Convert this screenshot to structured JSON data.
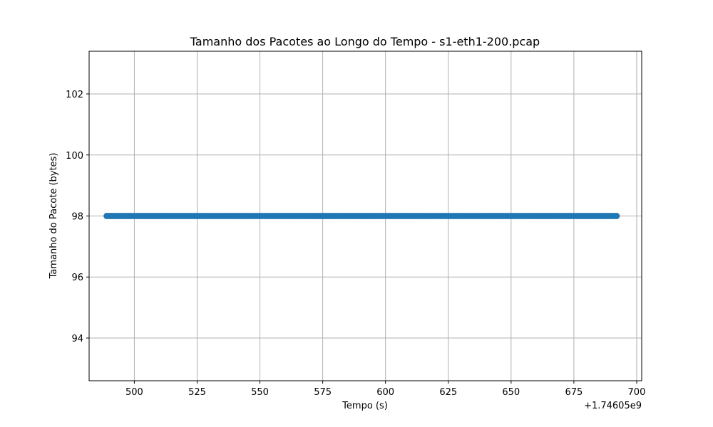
{
  "chart_data": {
    "type": "scatter",
    "title": "Tamanho dos Pacotes ao Longo do Tempo - s1-eth1-200.pcap",
    "xlabel": "Tempo (s)",
    "ylabel": "Tamanho do Pacote (bytes)",
    "x_offset_label": "+1.74605e9",
    "xlim": [
      482,
      702
    ],
    "ylim": [
      92.6,
      103.4
    ],
    "x_ticks": [
      500,
      525,
      550,
      575,
      600,
      625,
      650,
      675,
      700
    ],
    "y_ticks": [
      94,
      96,
      98,
      100,
      102
    ],
    "grid": true,
    "marker_color": "#1f77b4",
    "series": [
      {
        "x_range": [
          489,
          692
        ],
        "x_step": 1,
        "y": 98
      }
    ]
  }
}
